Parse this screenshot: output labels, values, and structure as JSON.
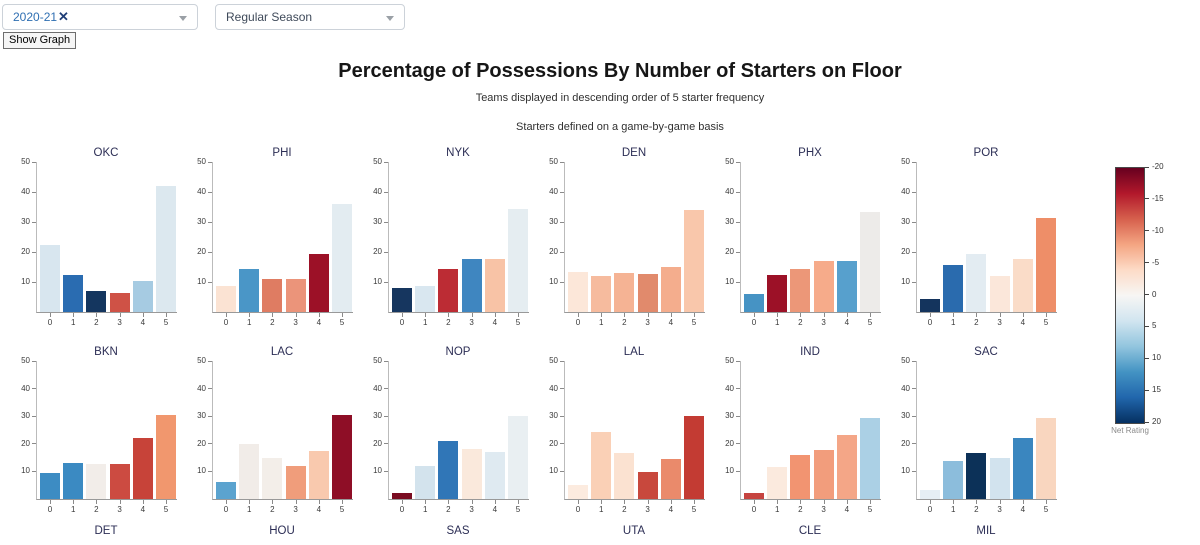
{
  "controls": {
    "season_filter": {
      "value": "2020-21",
      "remove_label": "✕"
    },
    "season_type": {
      "value": "Regular Season"
    },
    "show_graph_label": "Show Graph"
  },
  "header": {
    "title": "Percentage of Possessions By Number of Starters on Floor",
    "subtitle1": "Teams displayed in descending order of 5 starter frequency",
    "subtitle2": "Starters defined on a game-by-game basis"
  },
  "chart_data": {
    "type": "bar",
    "categories": [
      "0",
      "1",
      "2",
      "3",
      "4",
      "5"
    ],
    "xlabel": "",
    "ylabel": "",
    "ylim": [
      0,
      50
    ],
    "yticks": [
      10,
      20,
      30,
      40,
      50
    ],
    "grid": false,
    "teams": [
      {
        "name": "OKC",
        "values": [
          22.2,
          12.5,
          7.0,
          6.3,
          10.3,
          42.0
        ],
        "colors": [
          "#d8e6ef",
          "#2a6cb1",
          "#14365f",
          "#cf5246",
          "#a6cbe2",
          "#dce8ef"
        ]
      },
      {
        "name": "PHI",
        "values": [
          8.6,
          14.4,
          11.0,
          11.0,
          19.2,
          36.0
        ],
        "colors": [
          "#fbe3d3",
          "#4a96c7",
          "#df7c62",
          "#eb947a",
          "#9c1127",
          "#e3ecf1"
        ]
      },
      {
        "name": "NYK",
        "values": [
          8.0,
          8.6,
          14.4,
          17.6,
          17.6,
          34.5
        ],
        "colors": [
          "#16365f",
          "#d9e7f0",
          "#bc2c34",
          "#3f86c0",
          "#f8c3a6",
          "#e5edf1"
        ]
      },
      {
        "name": "DEN",
        "values": [
          13.4,
          12.0,
          13.1,
          12.7,
          15.1,
          34.0
        ],
        "colors": [
          "#fce7d9",
          "#f6bb9e",
          "#f5b394",
          "#e18a6c",
          "#f4ad8d",
          "#f9c7ab"
        ]
      },
      {
        "name": "PHX",
        "values": [
          5.9,
          12.5,
          14.4,
          17.0,
          17.0,
          33.5
        ],
        "colors": [
          "#4693c4",
          "#9c1127",
          "#ec9778",
          "#f6ab8a",
          "#57a0cd",
          "#edebe9"
        ]
      },
      {
        "name": "POR",
        "values": [
          4.5,
          15.6,
          19.5,
          12.0,
          17.7,
          31.4
        ],
        "colors": [
          "#14345d",
          "#2a6bae",
          "#e3ecf2",
          "#fbe7da",
          "#fadcc8",
          "#ee8e68"
        ]
      },
      {
        "name": "BKN",
        "values": [
          9.5,
          12.9,
          12.6,
          12.6,
          22.2,
          30.4
        ],
        "colors": [
          "#3d8cc3",
          "#3b8ac2",
          "#f2ede9",
          "#cc4b41",
          "#c74339",
          "#f1976e"
        ]
      },
      {
        "name": "LAC",
        "values": [
          6.0,
          19.8,
          15.0,
          11.9,
          17.4,
          30.4
        ],
        "colors": [
          "#5ba3cf",
          "#f1ece8",
          "#f3eee9",
          "#f09d7b",
          "#f9c9ae",
          "#8e0e26"
        ]
      },
      {
        "name": "NOP",
        "values": [
          2.2,
          11.9,
          21.2,
          18.0,
          16.9,
          30.2
        ],
        "colors": [
          "#7a0c21",
          "#d3e3ed",
          "#3076b7",
          "#fae9dc",
          "#dfeaf1",
          "#e9eff2"
        ]
      },
      {
        "name": "LAL",
        "values": [
          5.0,
          24.1,
          16.5,
          9.8,
          14.5,
          30.0
        ],
        "colors": [
          "#fcebdf",
          "#fad0b6",
          "#fbe2d1",
          "#c8483d",
          "#ea8a6b",
          "#c33b33"
        ]
      },
      {
        "name": "IND",
        "values": [
          2.0,
          11.6,
          16.1,
          17.6,
          23.2,
          29.5
        ],
        "colors": [
          "#c64440",
          "#fbeade",
          "#f29471",
          "#f29d7c",
          "#f4a687",
          "#abd0e5"
        ]
      },
      {
        "name": "SAC",
        "values": [
          3.4,
          13.6,
          16.7,
          14.7,
          22.2,
          29.4
        ],
        "colors": [
          "#e6eef4",
          "#8cbddc",
          "#0c3158",
          "#d2e3ee",
          "#3a86bf",
          "#f9d6bf"
        ]
      }
    ],
    "cut_off_row_titles": [
      "DET",
      "HOU",
      "SAS",
      "UTA",
      "CLE",
      "MIL"
    ],
    "colorbar": {
      "label": "Net Rating",
      "domain": [
        -20,
        20
      ],
      "ticks": [
        -20,
        -15,
        -10,
        -5,
        0,
        5,
        10,
        15,
        20
      ],
      "gradient": [
        "#67001f",
        "#b2182b",
        "#d6604d",
        "#f4a582",
        "#fddbc7",
        "#f7f6f4",
        "#d1e5f0",
        "#92c5de",
        "#4393c3",
        "#2166ac",
        "#053061"
      ]
    }
  }
}
